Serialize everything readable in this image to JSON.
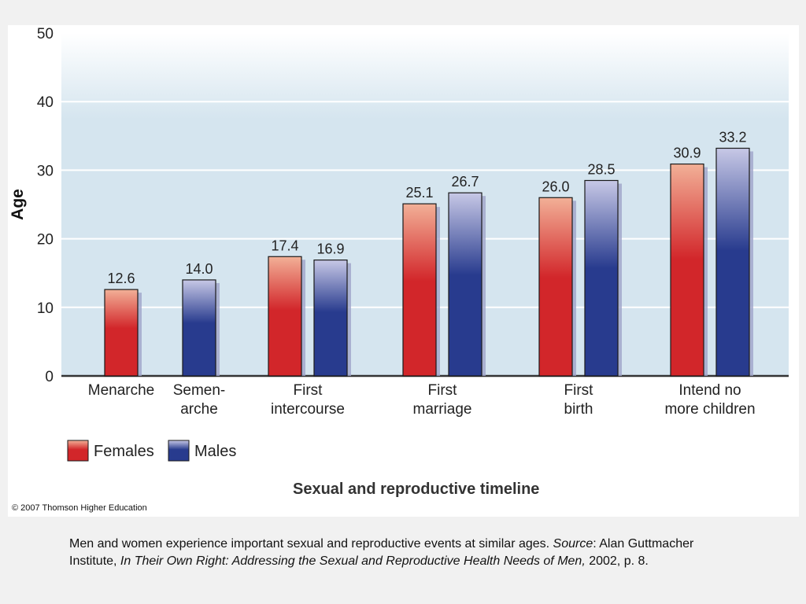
{
  "colors": {
    "female": "#d2262a",
    "male": "#283b8e",
    "plot_bg": "#d5e5ef",
    "axis": "#333333"
  },
  "chart_data": {
    "type": "bar",
    "title": "Sexual and reproductive timeline",
    "ylabel": "Age",
    "xlabel": "",
    "ylim": [
      0,
      50
    ],
    "yticks": [
      0,
      10,
      20,
      30,
      40,
      50
    ],
    "grid": true,
    "legend_position": "bottom-left",
    "categories": [
      [
        "Menarche"
      ],
      [
        "Semen-",
        "arche"
      ],
      [
        "First",
        "intercourse"
      ],
      [
        "First",
        "marriage"
      ],
      [
        "First",
        "birth"
      ],
      [
        "Intend no",
        "more children"
      ]
    ],
    "series": [
      {
        "name": "Females",
        "values": [
          12.6,
          null,
          17.4,
          25.1,
          26.0,
          30.9
        ],
        "labels": [
          "12.6",
          null,
          "17.4",
          "25.1",
          "26.0",
          "30.9"
        ]
      },
      {
        "name": "Males",
        "values": [
          null,
          14.0,
          16.9,
          26.7,
          28.5,
          33.2
        ],
        "labels": [
          null,
          "14.0",
          "16.9",
          "26.7",
          "28.5",
          "33.2"
        ]
      }
    ]
  },
  "copyright": "© 2007 Thomson Higher Education",
  "caption": {
    "text1": "Men and women experience important sexual and reproductive events at similar ages. ",
    "source_label": "Source",
    "text2": ": Alan Guttmacher Institute, ",
    "book_title": "In Their Own Right: Addressing the Sexual and Reproductive Health Needs of Men,",
    "text3": " 2002, p. 8."
  }
}
